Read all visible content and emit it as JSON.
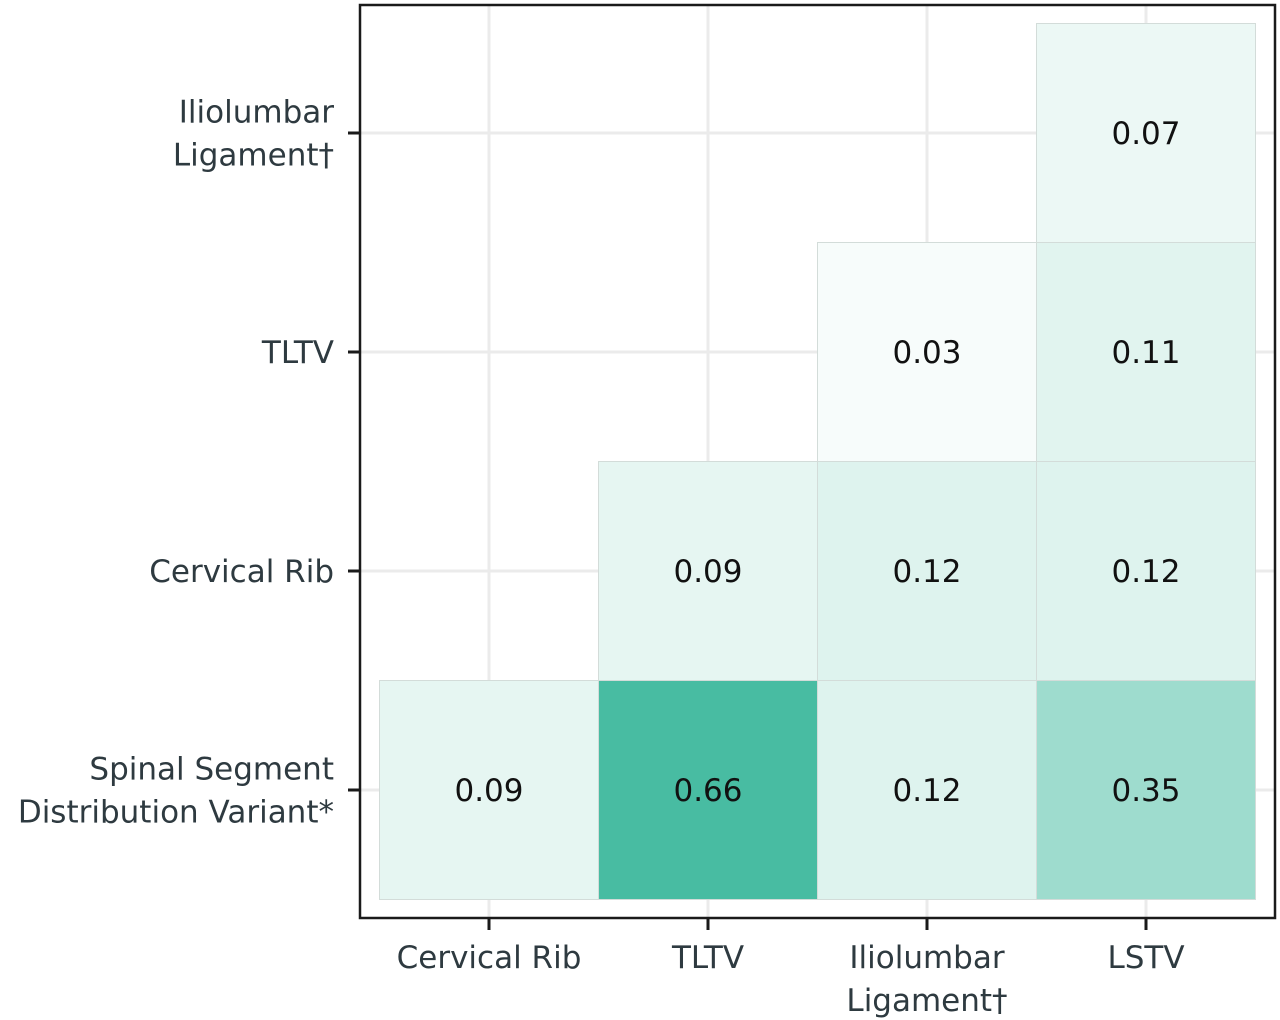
{
  "chart_data": {
    "type": "heatmap",
    "title": "",
    "xlabel": "",
    "ylabel": "",
    "x_categories": [
      "Cervical Rib",
      "TLTV",
      "Iliolumbar\nLigament†",
      "LSTV"
    ],
    "y_categories": [
      "Spinal Segment\nDistribution Variant*",
      "Cervical Rib",
      "TLTV",
      "Iliolumbar\nLigament†"
    ],
    "cells": [
      {
        "x": "Cervical Rib",
        "y": "Spinal Segment\nDistribution Variant*",
        "value": 0.09,
        "label": "0.09"
      },
      {
        "x": "TLTV",
        "y": "Spinal Segment\nDistribution Variant*",
        "value": 0.66,
        "label": "0.66"
      },
      {
        "x": "Iliolumbar\nLigament†",
        "y": "Spinal Segment\nDistribution Variant*",
        "value": 0.12,
        "label": "0.12"
      },
      {
        "x": "LSTV",
        "y": "Spinal Segment\nDistribution Variant*",
        "value": 0.35,
        "label": "0.35"
      },
      {
        "x": "TLTV",
        "y": "Cervical Rib",
        "value": 0.09,
        "label": "0.09"
      },
      {
        "x": "Iliolumbar\nLigament†",
        "y": "Cervical Rib",
        "value": 0.12,
        "label": "0.12"
      },
      {
        "x": "LSTV",
        "y": "Cervical Rib",
        "value": 0.12,
        "label": "0.12"
      },
      {
        "x": "Iliolumbar\nLigament†",
        "y": "TLTV",
        "value": 0.03,
        "label": "0.03"
      },
      {
        "x": "LSTV",
        "y": "TLTV",
        "value": 0.11,
        "label": "0.11"
      },
      {
        "x": "LSTV",
        "y": "Iliolumbar\nLigament†",
        "value": 0.07,
        "label": "0.07"
      }
    ],
    "color_scale": {
      "low": "#ffffff",
      "high": "#3db89c",
      "domain": [
        0,
        0.7
      ]
    },
    "grid": true,
    "legend": "none"
  }
}
